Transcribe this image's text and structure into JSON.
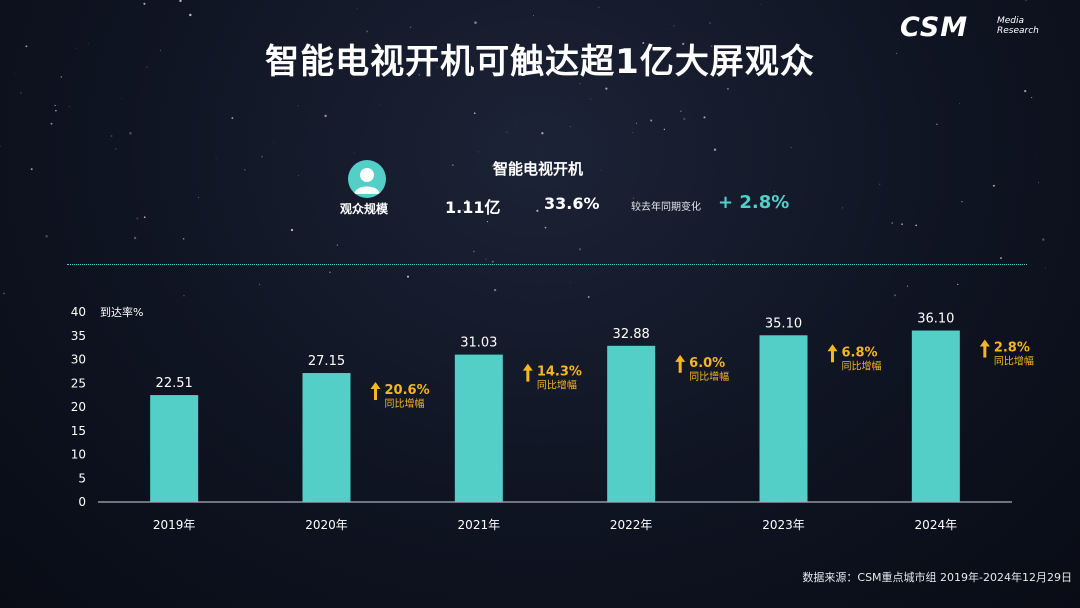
{
  "logo": {
    "main": "CSM",
    "sub_line1": "Media",
    "sub_line2": "Research"
  },
  "title": "智能电视开机可触达超1亿大屏观众",
  "summary": {
    "label": "智能电视开机",
    "audience_label": "观众规模",
    "audience_value": "1.11亿",
    "reach_rate": "33.6%",
    "change_label": "较去年同期变化",
    "change_value": "+ 2.8%"
  },
  "colors": {
    "bar": "#53cfc8",
    "growth": "#f5b623",
    "accent": "#53cfc8"
  },
  "chart_data": {
    "type": "bar",
    "ylabel": "到达率%",
    "ylim": [
      0,
      40
    ],
    "yticks": [
      0,
      5,
      10,
      15,
      20,
      25,
      30,
      35,
      40
    ],
    "categories": [
      "2019年",
      "2020年",
      "2021年",
      "2022年",
      "2023年",
      "2024年"
    ],
    "values": [
      22.51,
      27.15,
      31.03,
      32.88,
      35.1,
      36.1
    ],
    "value_labels": [
      "22.51",
      "27.15",
      "31.03",
      "32.88",
      "35.10",
      "36.10"
    ],
    "growth": [
      null,
      {
        "value": "20.6%",
        "label": "同比增幅"
      },
      {
        "value": "14.3%",
        "label": "同比增幅"
      },
      {
        "value": "6.0%",
        "label": "同比增幅"
      },
      {
        "value": "6.8%",
        "label": "同比增幅"
      },
      {
        "value": "2.8%",
        "label": "同比增幅"
      }
    ]
  },
  "source": "数据来源：CSM重点城市组 2019年-2024年12月29日"
}
